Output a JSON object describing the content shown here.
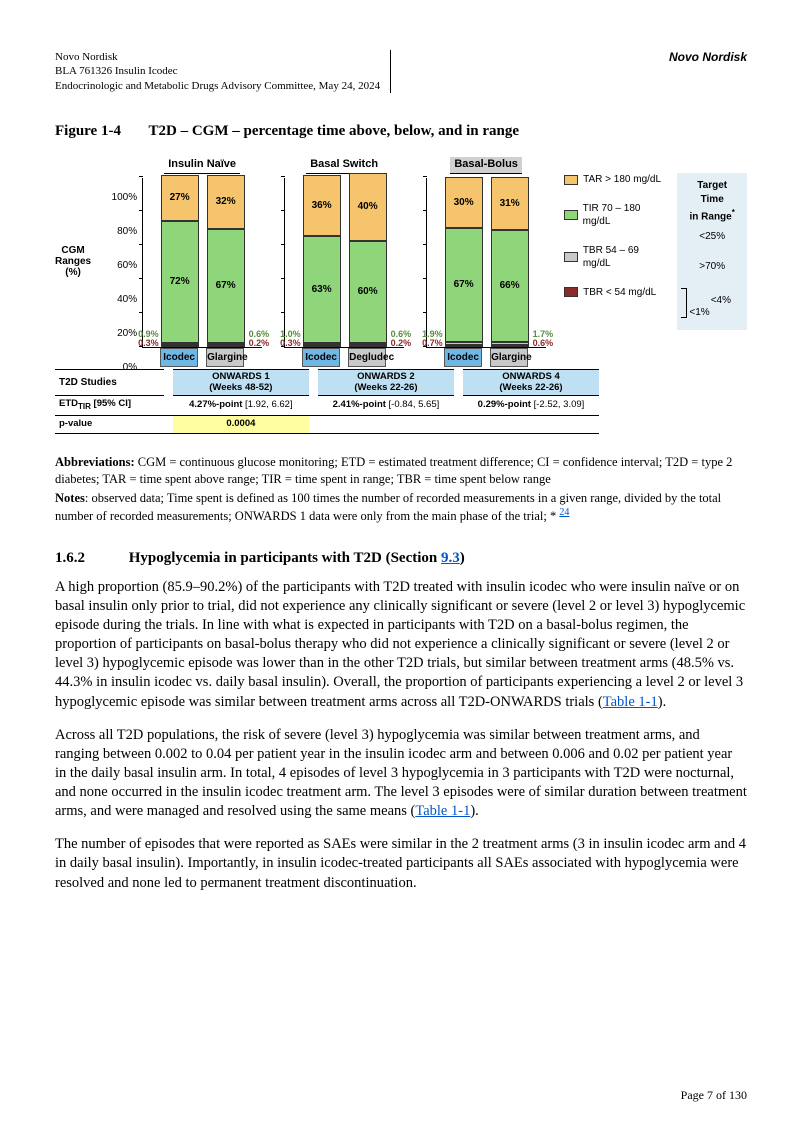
{
  "header": {
    "line1": "Novo Nordisk",
    "line2": "BLA 761326 Insulin Icodec",
    "line3": "Endocrinologic and Metabolic Drugs Advisory Committee, May 24, 2024",
    "right": "Novo Nordisk"
  },
  "figure": {
    "number": "Figure 1-4",
    "title": "T2D – CGM – percentage time above, below, and in range",
    "y_title_l1": "CGM",
    "y_title_l2": "Ranges",
    "y_title_l3": "(%)",
    "y_ticks": [
      "0%",
      "20%",
      "40%",
      "60%",
      "80%",
      "100%"
    ],
    "colors": {
      "tar": "#f5c46c",
      "tir": "#8fd67a",
      "tbr_hi": "#c9c9c9",
      "tbr_lo": "#8c2b2b",
      "icodec_label": "#6fb8e6",
      "comparator_label": "#c9c9c9",
      "onwards_bg": "#bfe0f2",
      "target_bg": "#e4eef5",
      "pval_hl": "#ffffa0"
    },
    "groups": [
      {
        "title": "Insulin Naïve",
        "shaded": false,
        "bars": [
          {
            "name": "Icodec",
            "label_color": "#6fb8e6",
            "segs": {
              "tar": 27,
              "tir": 72,
              "tbr_hi": 0.9,
              "tbr_lo": 0.3
            },
            "tar_label": "27%",
            "tir_label": "72%",
            "tbr_hi_label": "0.9%",
            "tbr_lo_label": "0.3%"
          },
          {
            "name": "Glargine",
            "label_color": "#c9c9c9",
            "segs": {
              "tar": 32,
              "tir": 67,
              "tbr_hi": 0.6,
              "tbr_lo": 0.2
            },
            "tar_label": "32%",
            "tir_label": "67%",
            "tbr_hi_label": "0.6%",
            "tbr_lo_label": "0.2%"
          }
        ],
        "study": "ONWARDS 1",
        "weeks": "(Weeks 48-52)",
        "etd": "4.27%-point",
        "etd_ci": "[1.92, 6.62]",
        "pval": "0.0004"
      },
      {
        "title": "Basal Switch",
        "shaded": false,
        "bars": [
          {
            "name": "Icodec",
            "label_color": "#6fb8e6",
            "segs": {
              "tar": 36,
              "tir": 63,
              "tbr_hi": 1.0,
              "tbr_lo": 0.3
            },
            "tar_label": "36%",
            "tir_label": "63%",
            "tbr_hi_label": "1.0%",
            "tbr_lo_label": "0.3%"
          },
          {
            "name": "Degludec",
            "label_color": "#c9c9c9",
            "segs": {
              "tar": 40,
              "tir": 60,
              "tbr_hi": 0.6,
              "tbr_lo": 0.2
            },
            "tar_label": "40%",
            "tir_label": "60%",
            "tbr_hi_label": "0.6%",
            "tbr_lo_label": "0.2%"
          }
        ],
        "study": "ONWARDS 2",
        "weeks": "(Weeks 22-26)",
        "etd": "2.41%-point",
        "etd_ci": "[-0.84, 5.65]",
        "pval": ""
      },
      {
        "title": "Basal-Bolus",
        "shaded": true,
        "bars": [
          {
            "name": "Icodec",
            "label_color": "#6fb8e6",
            "segs": {
              "tar": 30,
              "tir": 67,
              "tbr_hi": 1.9,
              "tbr_lo": 0.7
            },
            "tar_label": "30%",
            "tir_label": "67%",
            "tbr_hi_label": "1.9%",
            "tbr_lo_label": "0.7%"
          },
          {
            "name": "Glargine",
            "label_color": "#c9c9c9",
            "segs": {
              "tar": 31,
              "tir": 66,
              "tbr_hi": 1.7,
              "tbr_lo": 0.6
            },
            "tar_label": "31%",
            "tir_label": "66%",
            "tbr_hi_label": "1.7%",
            "tbr_lo_label": "0.6%"
          }
        ],
        "study": "ONWARDS 4",
        "weeks": "(Weeks 22-26)",
        "etd": "0.29%-point",
        "etd_ci": "[-2.52, 3.09]",
        "pval": ""
      }
    ],
    "legend": [
      {
        "color": "#f5c46c",
        "label": "TAR > 180 mg/dL"
      },
      {
        "color": "#8fd67a",
        "label": "TIR 70 – 180 mg/dL"
      },
      {
        "color": "#c9c9c9",
        "label": "TBR 54 – 69 mg/dL"
      },
      {
        "color": "#8c2b2b",
        "label": "TBR < 54 mg/dL"
      }
    ],
    "target_title_l1": "Target Time",
    "target_title_l2": "in Range",
    "target_items": [
      "<25%",
      ">70%",
      "<4%",
      "<1%"
    ],
    "table_labels": {
      "studies": "T2D Studies",
      "etd": "ETD",
      "etd_sub": "TIR",
      "etd_ci": "[95% CI]",
      "pval": "p-value"
    }
  },
  "abbrev": {
    "bold": "Abbreviations:",
    "text": " CGM = continuous glucose monitoring; ETD = estimated treatment difference; CI = confidence interval; T2D = type 2 diabetes; TAR = time spent above range; TIR = time spent in range; TBR = time spent below range"
  },
  "notes": {
    "bold": "Notes",
    "text": ": observed data; Time spent is defined as 100 times the number of recorded measurements in a given range, divided by the total number of recorded measurements; ONWARDS 1 data were only from the main phase of the trial; *",
    "ref": "24"
  },
  "section": {
    "number": "1.6.2",
    "title_pre": "Hypoglycemia in participants with T2D (Section ",
    "title_link": "9.3",
    "title_post": ")"
  },
  "para1": {
    "t1": "A high proportion (85.9–90.2%) of the participants with T2D treated with insulin icodec who were insulin naïve or on basal insulin only prior to trial, did not experience any clinically significant or severe (level 2 or level 3) hypoglycemic episode during the trials.  In line with what is expected in participants with T2D on a basal-bolus regimen, the proportion of participants on basal-bolus therapy who did not experience a clinically significant or severe (level 2 or level 3) hypoglycemic episode was lower than in the other T2D trials, but similar between treatment arms (48.5% vs. 44.3% in insulin icodec vs. daily basal insulin). Overall, the proportion of participants experiencing a level 2 or level 3 hypoglycemic episode was similar between treatment arms across all T2D-ONWARDS trials (",
    "link": "Table 1-1",
    "t2": ")."
  },
  "para2": {
    "t1": "Across all T2D populations, the risk of severe (level 3) hypoglycemia was similar between treatment arms, and ranging between 0.002 to 0.04 per patient year in the insulin icodec arm and between 0.006 and 0.02 per patient year in the daily basal insulin arm. In total, 4 episodes of level 3 hypoglycemia in 3 participants with T2D were nocturnal, and none occurred in the insulin icodec treatment arm. The level 3 episodes were of similar duration between treatment arms, and were managed and resolved using the same means (",
    "link": "Table 1-1",
    "t2": ")."
  },
  "para3": "The number of episodes that were reported as SAEs were similar in the 2 treatment arms (3 in insulin icodec arm and 4 in daily basal insulin). Importantly, in insulin icodec-treated participants all SAEs associated with hypoglycemia were resolved and none led to permanent treatment discontinuation.",
  "page": "Page 7 of 130"
}
